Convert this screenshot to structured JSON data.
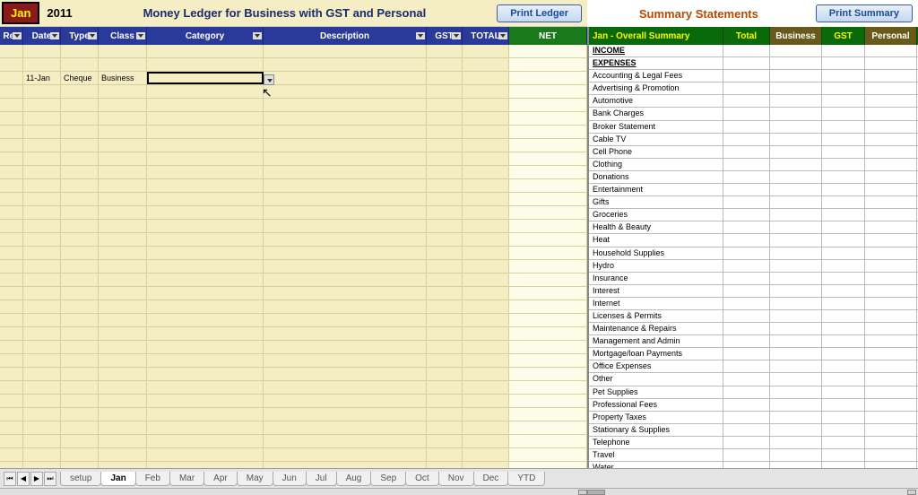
{
  "header": {
    "month": "Jan",
    "year": "2011",
    "ledger_title": "Money Ledger for Business with GST and Personal",
    "print_ledger": "Print Ledger",
    "summary_title": "Summary Statements",
    "print_summary": "Print Summary"
  },
  "ledger_columns": {
    "rec": "Rec",
    "date": "Date",
    "type": "Type",
    "class": "Class",
    "category": "Category",
    "description": "Description",
    "gst": "GST",
    "total": "TOTAL",
    "net": "NET"
  },
  "ledger_entry": {
    "date": "11-Jan",
    "type": "Cheque",
    "class": "Business"
  },
  "summary_columns": {
    "title": "Jan - Overall Summary",
    "total": "Total",
    "business": "Business",
    "gst": "GST",
    "personal": "Personal"
  },
  "summary_rows": [
    {
      "label": "INCOME",
      "bold": true
    },
    {
      "label": "EXPENSES",
      "bold": true
    },
    {
      "label": "Accounting & Legal Fees"
    },
    {
      "label": "Advertising & Promotion"
    },
    {
      "label": "Automotive"
    },
    {
      "label": "Bank Charges"
    },
    {
      "label": "Broker Statement"
    },
    {
      "label": "Cable TV"
    },
    {
      "label": "Cell Phone"
    },
    {
      "label": "Clothing"
    },
    {
      "label": "Donations"
    },
    {
      "label": "Entertainment"
    },
    {
      "label": "Gifts"
    },
    {
      "label": "Groceries"
    },
    {
      "label": "Health & Beauty"
    },
    {
      "label": "Heat"
    },
    {
      "label": "Household Supplies"
    },
    {
      "label": "Hydro"
    },
    {
      "label": "Insurance"
    },
    {
      "label": "Interest"
    },
    {
      "label": "Internet"
    },
    {
      "label": "Licenses & Permits"
    },
    {
      "label": "Maintenance & Repairs"
    },
    {
      "label": "Management and Admin"
    },
    {
      "label": "Mortgage/loan Payments"
    },
    {
      "label": "Office Expenses"
    },
    {
      "label": "Other"
    },
    {
      "label": "Pet Supplies"
    },
    {
      "label": "Professional Fees"
    },
    {
      "label": "Property Taxes"
    },
    {
      "label": "Stationary & Supplies"
    },
    {
      "label": "Telephone"
    },
    {
      "label": "Travel"
    },
    {
      "label": "Water"
    }
  ],
  "tabs": [
    "setup",
    "Jan",
    "Feb",
    "Mar",
    "Apr",
    "May",
    "Jun",
    "Jul",
    "Aug",
    "Sep",
    "Oct",
    "Nov",
    "Dec",
    "YTD"
  ],
  "active_tab": "Jan",
  "colors": {
    "ledger_bg": "#f5eec5",
    "ledger_header_bg": "#2a3a9a",
    "net_header_bg": "#1a7a1a",
    "summary_header_bg": "#0a6a0a",
    "summary_alt_bg": "#6a5a1a",
    "month_bg": "#8b1a1a",
    "month_fg": "#fff700"
  },
  "ledger_empty_rows": 30
}
